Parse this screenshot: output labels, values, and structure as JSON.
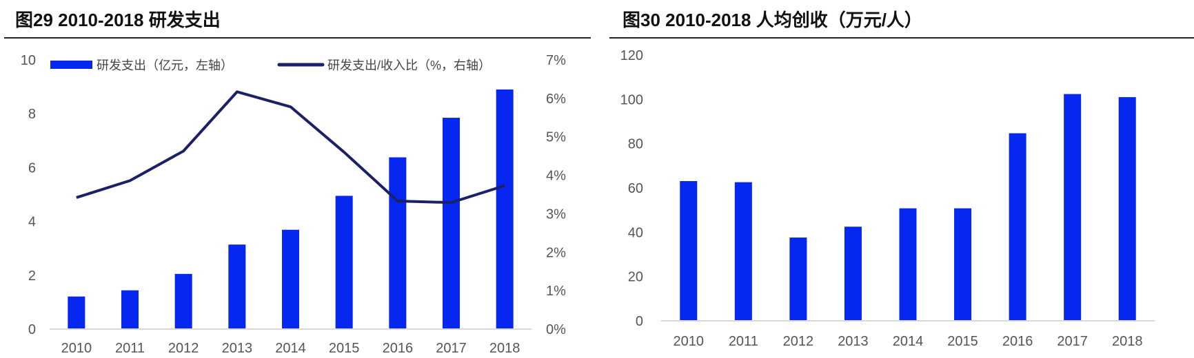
{
  "colors": {
    "bar": "#0527f0",
    "line": "#1a2167",
    "axis": "#d9d9d9",
    "rule": "#222222"
  },
  "chart_data": [
    {
      "type": "bar+line",
      "title": "图29 2010-2018 研发支出",
      "categories": [
        "2010",
        "2011",
        "2012",
        "2013",
        "2014",
        "2015",
        "2016",
        "2017",
        "2018"
      ],
      "series": [
        {
          "name": "研发支出（亿元，左轴）",
          "type": "bar",
          "axis": "left",
          "values": [
            1.21,
            1.44,
            2.05,
            3.14,
            3.69,
            4.95,
            6.38,
            7.85,
            8.9
          ]
        },
        {
          "name": "研发支出/收入比（%，右轴）",
          "type": "line",
          "axis": "right",
          "values": [
            3.42,
            3.86,
            4.63,
            6.17,
            5.78,
            4.6,
            3.33,
            3.29,
            3.73
          ]
        }
      ],
      "ylim_left": [
        0,
        10
      ],
      "yticks_left": [
        "0",
        "2",
        "4",
        "6",
        "8",
        "10"
      ],
      "ylim_right": [
        0,
        7
      ],
      "yticks_right": [
        "0%",
        "1%",
        "2%",
        "3%",
        "4%",
        "5%",
        "6%",
        "7%"
      ],
      "legend": "top",
      "grid": false
    },
    {
      "type": "bar",
      "title": "图30 2010-2018 人均创收（万元/人）",
      "categories": [
        "2010",
        "2011",
        "2012",
        "2013",
        "2014",
        "2015",
        "2016",
        "2017",
        "2018"
      ],
      "values": [
        63.1,
        62.6,
        37.6,
        42.5,
        50.8,
        50.8,
        84.7,
        102.4,
        101.0
      ],
      "ylim": [
        0,
        120
      ],
      "yticks": [
        "0",
        "20",
        "40",
        "60",
        "80",
        "100",
        "120"
      ],
      "grid": false
    }
  ]
}
